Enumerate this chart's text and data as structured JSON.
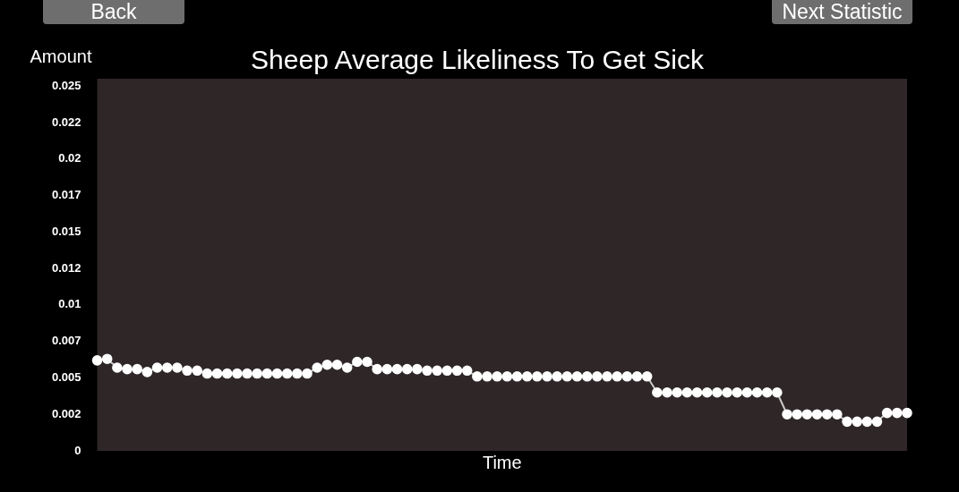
{
  "chart_data": {
    "type": "line",
    "title": "Sheep Average Likeliness To Get Sick",
    "xlabel": "Time",
    "ylabel": "Amount",
    "annotations": [
      "Back",
      "Next Statistic"
    ],
    "categories": [
      null,
      null,
      null,
      null,
      null,
      null,
      null,
      null,
      null,
      null,
      null,
      null,
      null,
      null,
      null,
      null,
      null,
      null,
      null,
      null,
      null,
      null,
      null,
      null,
      null,
      null,
      null,
      null,
      null,
      null,
      null,
      null,
      null,
      null,
      null,
      null,
      null,
      null,
      null,
      null,
      null,
      null,
      null,
      null,
      null,
      null,
      null,
      null,
      null,
      null,
      null,
      null,
      null,
      null,
      null,
      null,
      null,
      null,
      null,
      null,
      null,
      null,
      null,
      null,
      null,
      null,
      null,
      null,
      null,
      null,
      null,
      null,
      null,
      null,
      null,
      null,
      null,
      null,
      null,
      null,
      null,
      null
    ],
    "series": [
      {
        "color": "#ffffff",
        "values": [
          0.0062,
          0.0063,
          0.0057,
          0.0056,
          0.0056,
          0.0054,
          0.0057,
          0.0057,
          0.0057,
          0.0055,
          0.0055,
          0.0053,
          0.0053,
          0.0053,
          0.0053,
          0.0053,
          0.0053,
          0.0053,
          0.0053,
          0.0053,
          0.0053,
          0.0053,
          0.0057,
          0.0059,
          0.0059,
          0.0057,
          0.0061,
          0.0061,
          0.0056,
          0.0056,
          0.0056,
          0.0056,
          0.0056,
          0.0055,
          0.0055,
          0.0055,
          0.0055,
          0.0055,
          0.0051,
          0.0051,
          0.0051,
          0.0051,
          0.0051,
          0.0051,
          0.0051,
          0.0051,
          0.0051,
          0.0051,
          0.0051,
          0.0051,
          0.0051,
          0.0051,
          0.0051,
          0.0051,
          0.0051,
          0.0051,
          0.004,
          0.004,
          0.004,
          0.004,
          0.004,
          0.004,
          0.004,
          0.004,
          0.004,
          0.004,
          0.004,
          0.004,
          0.004,
          0.0025,
          0.0025,
          0.0025,
          0.0025,
          0.0025,
          0.0025,
          0.002,
          0.002,
          0.002,
          0.002,
          0.0026,
          0.0026,
          0.0026
        ]
      }
    ],
    "ylim": [
      0,
      0.0255
    ],
    "yticks": [
      0,
      {
        "value": 0.0025,
        "label": "0.002"
      },
      {
        "value": 0.005,
        "label": "0.005"
      },
      {
        "value": 0.0075,
        "label": "0.007"
      },
      {
        "value": 0.01,
        "label": "0.01"
      },
      {
        "value": 0.0125,
        "label": "0.012"
      },
      {
        "value": 0.015,
        "label": "0.015"
      },
      {
        "value": 0.0175,
        "label": "0.017"
      },
      {
        "value": 0.02,
        "label": "0.02"
      },
      {
        "value": 0.0225,
        "label": "0.022"
      },
      {
        "value": 0.025,
        "label": "0.025"
      }
    ],
    "tick_labels": "y",
    "grid": false,
    "legend": false,
    "marker": "circle",
    "line_style": "solid"
  }
}
